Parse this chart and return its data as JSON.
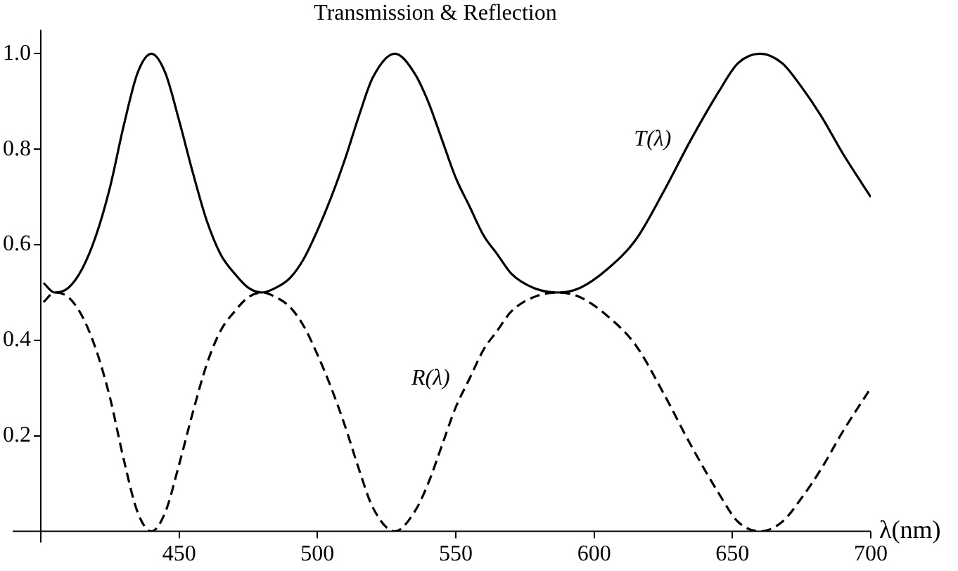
{
  "chart_data": {
    "type": "line",
    "title": "Transmission & Reflection",
    "xlabel": "λ(nm)",
    "x": [
      401,
      405,
      410,
      415,
      420,
      425,
      430,
      435,
      440,
      445,
      450,
      455,
      460,
      465,
      470,
      475,
      480,
      485,
      490,
      495,
      500,
      505,
      510,
      515,
      520,
      528,
      535,
      540,
      545,
      550,
      555,
      560,
      565,
      570,
      578,
      587,
      595,
      605,
      615,
      625,
      635,
      645,
      652,
      660,
      668,
      675,
      682,
      690,
      700
    ],
    "series": [
      {
        "name": "T(λ)",
        "color": "#000000",
        "line_style": "solid",
        "values": [
          0.52,
          0.5,
          0.51,
          0.55,
          0.62,
          0.72,
          0.85,
          0.96,
          1.0,
          0.96,
          0.86,
          0.75,
          0.65,
          0.58,
          0.54,
          0.51,
          0.5,
          0.51,
          0.53,
          0.57,
          0.63,
          0.7,
          0.78,
          0.87,
          0.95,
          1.0,
          0.96,
          0.9,
          0.82,
          0.74,
          0.68,
          0.62,
          0.58,
          0.54,
          0.51,
          0.5,
          0.51,
          0.55,
          0.61,
          0.71,
          0.82,
          0.92,
          0.98,
          1.0,
          0.98,
          0.93,
          0.87,
          0.79,
          0.7
        ]
      },
      {
        "name": "R(λ)",
        "color": "#000000",
        "line_style": "dashed",
        "values": [
          0.48,
          0.5,
          0.49,
          0.45,
          0.38,
          0.28,
          0.15,
          0.04,
          0.0,
          0.04,
          0.14,
          0.25,
          0.35,
          0.42,
          0.46,
          0.49,
          0.5,
          0.49,
          0.47,
          0.43,
          0.37,
          0.3,
          0.22,
          0.13,
          0.05,
          0.0,
          0.04,
          0.1,
          0.18,
          0.26,
          0.32,
          0.38,
          0.42,
          0.46,
          0.49,
          0.5,
          0.49,
          0.45,
          0.39,
          0.29,
          0.18,
          0.08,
          0.02,
          0.0,
          0.02,
          0.07,
          0.13,
          0.21,
          0.3
        ]
      }
    ],
    "xlim": [
      400,
      700
    ],
    "xticks": [
      450,
      500,
      550,
      600,
      650,
      700
    ],
    "ylim": [
      0,
      1.05
    ],
    "yticks": [
      0.2,
      0.4,
      0.6,
      0.8,
      {
        "value": 1,
        "label": "1.0"
      }
    ],
    "grid": false,
    "legend": false,
    "marker": "none"
  }
}
